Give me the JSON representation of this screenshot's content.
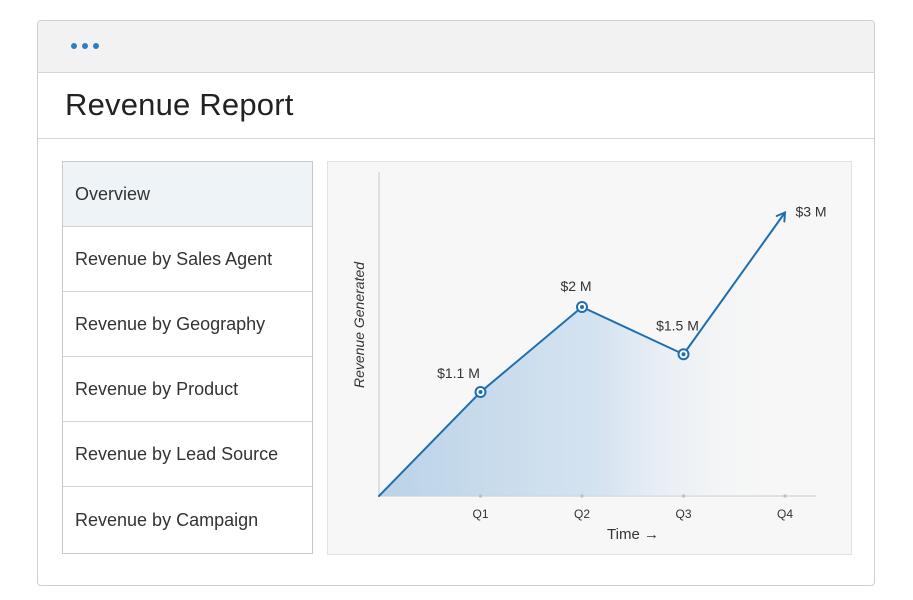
{
  "window": {
    "title": "Revenue Report"
  },
  "sidebar": {
    "items": [
      {
        "label": "Overview",
        "active": true
      },
      {
        "label": "Revenue by Sales Agent",
        "active": false
      },
      {
        "label": "Revenue by Geography",
        "active": false
      },
      {
        "label": "Revenue by Product",
        "active": false
      },
      {
        "label": "Revenue by Lead Source",
        "active": false
      },
      {
        "label": "Revenue by Campaign",
        "active": false
      }
    ]
  },
  "colors": {
    "accent": "#1f6fb0",
    "active_item_bg": "#eef3f8",
    "area_fill": "#b9d3e9"
  },
  "chart_data": {
    "type": "line",
    "xlabel": "Time →",
    "ylabel": "Revenue Generated",
    "categories": [
      "Q1",
      "Q2",
      "Q3",
      "Q4"
    ],
    "x": [
      0,
      1,
      2,
      3,
      4
    ],
    "values": [
      0,
      1.1,
      2,
      1.5,
      3
    ],
    "data_labels": [
      "",
      "$1.1 M",
      "$2 M",
      "$1.5 M",
      "$3 M"
    ],
    "ylim": [
      0,
      3.4
    ],
    "grid": false,
    "area_fill": true,
    "end_arrow": true
  }
}
